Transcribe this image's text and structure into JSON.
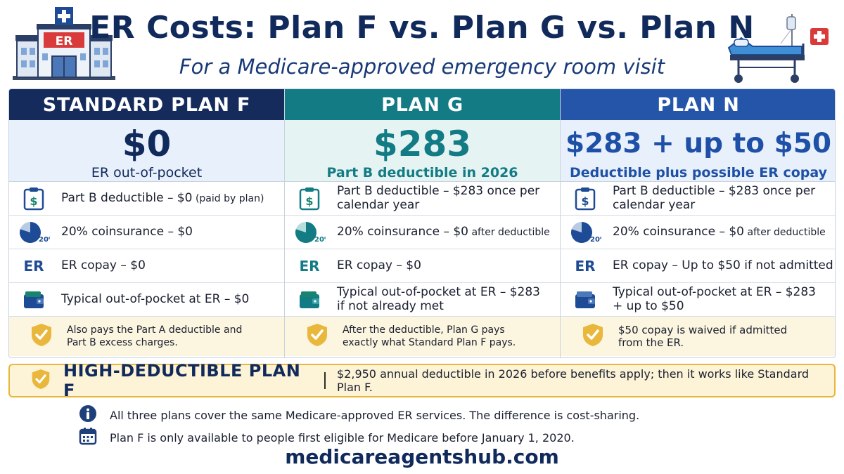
{
  "title": "ER Costs: Plan F vs. Plan G vs. Plan N",
  "subtitle": "For a Medicare-approved emergency room visit",
  "hospital_sign": "ER",
  "plans": [
    {
      "header": "STANDARD PLAN F",
      "price": "$0",
      "price_sub": "ER out-of-pocket",
      "rows": [
        {
          "icon": "clipboard-dollar-icon",
          "text": "Part B deductible – $0",
          "small": " (paid by plan)"
        },
        {
          "icon": "pie-20-percent-icon",
          "icon_label": "20%",
          "text": "20% coinsurance – $0",
          "small": ""
        },
        {
          "icon": "er-icon",
          "icon_label": "ER",
          "text": "ER copay – $0",
          "small": ""
        },
        {
          "icon": "wallet-icon",
          "text": "Typical out-of-pocket at ER – $0",
          "small": ""
        }
      ],
      "note": "Also pays the Part A deductible and Part B excess charges."
    },
    {
      "header": "PLAN G",
      "price": "$283",
      "price_sub": "Part B deductible in 2026",
      "rows": [
        {
          "icon": "clipboard-dollar-icon",
          "text": "Part B deductible – $283 once per calendar year",
          "small": ""
        },
        {
          "icon": "pie-20-percent-icon",
          "icon_label": "20%",
          "text": "20% coinsurance – $0",
          "small": " after deductible"
        },
        {
          "icon": "er-icon",
          "icon_label": "ER",
          "text": "ER copay – $0",
          "small": ""
        },
        {
          "icon": "wallet-icon",
          "text": "Typical out-of-pocket at ER – $283 if not already met",
          "small": ""
        }
      ],
      "note": "After the deductible, Plan G pays exactly what Standard Plan F pays."
    },
    {
      "header": "PLAN N",
      "price": "$283 + up to $50",
      "price_sub": "Deductible plus possible ER copay",
      "rows": [
        {
          "icon": "clipboard-dollar-icon",
          "text": "Part B deductible – $283 once per calendar year",
          "small": ""
        },
        {
          "icon": "pie-20-percent-icon",
          "icon_label": "20%",
          "text": "20% coinsurance – $0",
          "small": " after deductible"
        },
        {
          "icon": "er-icon",
          "icon_label": "ER",
          "text": "ER copay – Up to $50 if not admitted",
          "small": ""
        },
        {
          "icon": "wallet-icon",
          "text": "Typical out-of-pocket at ER – $283 + up to $50",
          "small": ""
        }
      ],
      "note": "$50 copay is waived if admitted from the ER."
    }
  ],
  "high_deductible": {
    "label": "HIGH-DEDUCTIBLE PLAN F",
    "text": "$2,950 annual deductible in 2026 before benefits apply; then it works like Standard Plan F."
  },
  "footnotes": [
    {
      "icon": "info-icon",
      "text": "All three plans cover the same Medicare-approved ER services. The difference is cost-sharing."
    },
    {
      "icon": "calendar-icon",
      "text": "Plan F is only available to people first eligible for Medicare before January 1, 2020."
    }
  ],
  "website": "medicareagentshub.com",
  "colors": {
    "navy": "#142b5c",
    "teal": "#127b84",
    "blue": "#2455a8",
    "gold": "#e9b73c"
  }
}
